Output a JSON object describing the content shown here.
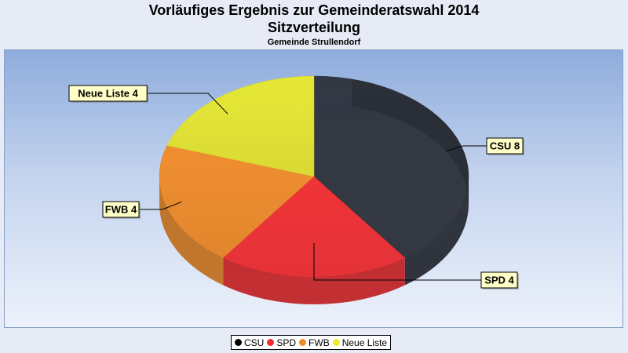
{
  "chart_data": {
    "type": "pie",
    "title": "Vorläufiges Ergebnis zur Gemeinderatswahl 2014",
    "subtitle": "Sitzverteilung",
    "subsubtitle": "Gemeinde Strullendorf",
    "legend_position": "bottom",
    "slices": [
      {
        "label": "CSU",
        "value": 8,
        "color": "#2b2f38",
        "data_label": "CSU 8"
      },
      {
        "label": "SPD",
        "value": 4,
        "color": "#f5282c",
        "data_label": "SPD 4"
      },
      {
        "label": "FWB",
        "value": 4,
        "color": "#f48a22",
        "data_label": "FWB 4"
      },
      {
        "label": "Neue Liste",
        "value": 4,
        "color": "#ecec2a",
        "data_label": "Neue Liste 4"
      }
    ]
  }
}
